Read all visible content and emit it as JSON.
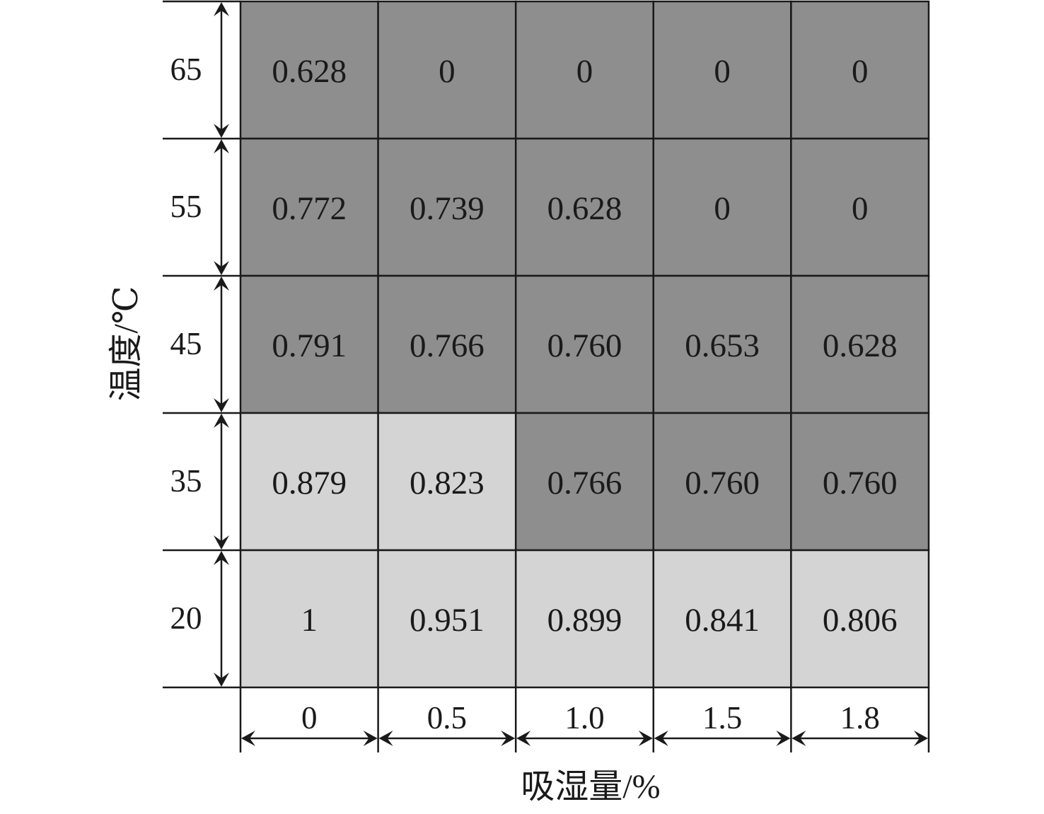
{
  "chart_data": {
    "type": "heatmap",
    "xlabel": "吸湿量/%",
    "ylabel": "温度/℃",
    "x_categories": [
      "0",
      "0.5",
      "1.0",
      "1.5",
      "1.8"
    ],
    "y_categories": [
      "65",
      "55",
      "45",
      "35",
      "20"
    ],
    "values": [
      [
        "0.628",
        "0",
        "0",
        "0",
        "0"
      ],
      [
        "0.772",
        "0.739",
        "0.628",
        "0",
        "0"
      ],
      [
        "0.791",
        "0.766",
        "0.760",
        "0.653",
        "0.628"
      ],
      [
        "0.879",
        "0.823",
        "0.766",
        "0.760",
        "0.760"
      ],
      [
        "1",
        "0.951",
        "0.899",
        "0.841",
        "0.806"
      ]
    ],
    "shade_groups": [
      [
        "dark",
        "dark",
        "dark",
        "dark",
        "dark"
      ],
      [
        "dark",
        "dark",
        "dark",
        "dark",
        "dark"
      ],
      [
        "dark",
        "dark",
        "dark",
        "dark",
        "dark"
      ],
      [
        "light",
        "light",
        "dark",
        "dark",
        "dark"
      ],
      [
        "light",
        "light",
        "light",
        "light",
        "light"
      ]
    ],
    "colors": {
      "dark": "#8f8e8f",
      "light": "#d4d4d4",
      "line": "#1a1a1a"
    }
  }
}
